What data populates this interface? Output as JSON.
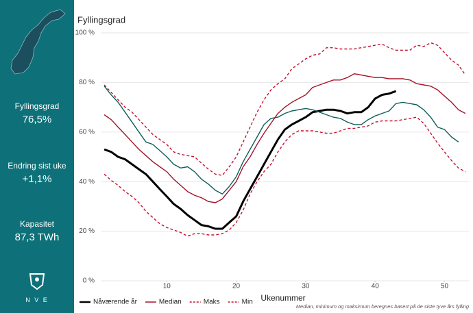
{
  "sidebar": {
    "stats": [
      {
        "label": "Fyllingsgrad",
        "value": "76,5%"
      },
      {
        "label": "Endring sist uke",
        "value": "+1,1%"
      },
      {
        "label": "Kapasitet",
        "value": "87,3 TWh"
      }
    ],
    "logo": "N V E"
  },
  "chart_data": {
    "type": "line",
    "title": "Fyllingsgrad",
    "x_label": "Ukenummer",
    "note": "Median, minimum og maksimum beregnes basert på de siste tyve års fylling",
    "x": [
      1,
      2,
      3,
      4,
      5,
      6,
      7,
      8,
      9,
      10,
      11,
      12,
      13,
      14,
      15,
      16,
      17,
      18,
      19,
      20,
      21,
      22,
      23,
      24,
      25,
      26,
      27,
      28,
      29,
      30,
      31,
      32,
      33,
      34,
      35,
      36,
      37,
      38,
      39,
      40,
      41,
      42,
      43,
      44,
      45,
      46,
      47,
      48,
      49,
      50,
      51,
      52,
      53
    ],
    "xlim": [
      0.5,
      53.5
    ],
    "xticks": [
      10,
      20,
      30,
      40,
      50
    ],
    "ylim": [
      0,
      100
    ],
    "yticks": [
      {
        "value": 0,
        "label": "0 %"
      },
      {
        "value": 20,
        "label": "20 %"
      },
      {
        "value": 40,
        "label": "40 %"
      },
      {
        "value": 60,
        "label": "60 %"
      },
      {
        "value": 80,
        "label": "80 %"
      },
      {
        "value": 100,
        "label": "100 %"
      }
    ],
    "grid": true,
    "legend": "bottom-left",
    "series": [
      {
        "name": "Nåværende år",
        "color": "#000000",
        "style": "solid",
        "width": 3,
        "values": [
          53,
          52,
          50,
          49,
          47,
          45,
          43,
          40,
          37,
          34,
          31,
          29,
          26.5,
          24.5,
          22.5,
          22,
          21,
          21,
          23.5,
          26,
          32,
          37,
          42,
          47,
          52,
          57,
          61,
          63,
          64.5,
          66,
          68,
          68.5,
          69,
          69,
          68.5,
          67.5,
          68,
          68,
          70,
          73.5,
          75,
          75.5,
          76.5,
          null,
          null,
          null,
          null,
          null,
          null,
          null,
          null,
          null,
          null
        ]
      },
      {
        "color": "#0e5e5a",
        "style": "solid",
        "width": 1.4,
        "values": [
          78.5,
          75,
          72,
          68,
          64,
          60,
          56,
          55,
          52.5,
          50,
          47,
          45.5,
          46,
          44,
          41,
          39,
          36.5,
          35,
          38,
          42,
          48,
          53,
          58,
          63,
          65.5,
          66,
          67.5,
          68.5,
          69,
          69.5,
          69,
          68,
          67,
          66,
          65.5,
          64,
          63,
          63,
          65,
          66.5,
          67.5,
          68.5,
          71.5,
          72,
          71.5,
          71,
          69,
          66,
          62,
          61,
          58,
          56,
          null
        ]
      },
      {
        "name": "Median",
        "color": "#a3142b",
        "style": "solid",
        "width": 1.4,
        "values": [
          67,
          65,
          62,
          59,
          56,
          53,
          50.5,
          48,
          46,
          44,
          41,
          38.5,
          36,
          34.5,
          33.5,
          32,
          31.5,
          33,
          36.5,
          40,
          46,
          50,
          55,
          59.5,
          63.5,
          67.5,
          70,
          72,
          73.5,
          75,
          78,
          79,
          80,
          81,
          81,
          82,
          83.5,
          83,
          82.5,
          82,
          82,
          81.5,
          81.5,
          81.5,
          81,
          79.5,
          79,
          78.5,
          77,
          74.5,
          72,
          69,
          67.5
        ]
      },
      {
        "name": "Maks",
        "color": "#c8102e",
        "style": "dashed",
        "width": 1.4,
        "values": [
          79,
          76,
          73,
          70,
          68,
          65,
          62,
          59,
          57,
          55,
          52,
          51,
          50.5,
          50,
          47.5,
          45,
          43,
          42.5,
          46,
          50,
          56,
          62,
          68,
          73,
          77,
          79.5,
          81.5,
          85.5,
          87.5,
          89.5,
          91,
          91.5,
          94,
          94,
          93.5,
          93.5,
          93.5,
          94,
          94.5,
          95,
          95.5,
          94,
          93,
          93,
          93,
          95,
          94.5,
          96,
          95,
          92,
          89,
          87,
          83
        ]
      },
      {
        "name": "Min",
        "color": "#c8102e",
        "style": "dashed",
        "width": 1.4,
        "values": [
          43,
          40.5,
          38.5,
          36,
          34,
          31.5,
          28,
          25.5,
          23,
          21.5,
          20.5,
          19.5,
          18,
          19,
          19,
          18.5,
          18.5,
          19,
          20.5,
          23.5,
          28.5,
          35,
          40,
          44,
          47,
          52,
          56,
          59,
          60.5,
          60.5,
          60.5,
          60,
          59.5,
          59.5,
          60.5,
          61.5,
          61.5,
          62,
          62.5,
          64,
          64.5,
          64.5,
          64.5,
          65,
          65.5,
          66,
          63.5,
          59.5,
          55.5,
          52,
          48.5,
          45.5,
          44
        ]
      }
    ]
  }
}
